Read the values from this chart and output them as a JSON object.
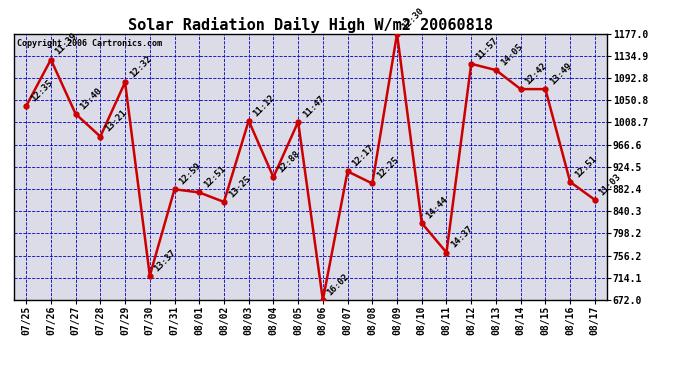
{
  "title": "Solar Radiation Daily High W/m2 20060818",
  "copyright": "Copyright 2006 Cartronics.com",
  "dates": [
    "07/25",
    "07/26",
    "07/27",
    "07/28",
    "07/29",
    "07/30",
    "07/31",
    "08/01",
    "08/02",
    "08/03",
    "08/04",
    "08/05",
    "08/06",
    "08/07",
    "08/08",
    "08/09",
    "08/10",
    "08/11",
    "08/12",
    "08/13",
    "08/14",
    "08/15",
    "08/16",
    "08/17"
  ],
  "values": [
    1040,
    1128,
    1025,
    982,
    1085,
    718,
    882,
    876,
    858,
    1012,
    905,
    1010,
    672,
    916,
    893,
    1177,
    818,
    762,
    1120,
    1108,
    1072,
    1072,
    896,
    862
  ],
  "annotations": [
    "12:35",
    "11:39",
    "13:40",
    "13:21",
    "12:32",
    "13:37",
    "12:59",
    "12:51",
    "13:25",
    "11:12",
    "12:88",
    "11:47",
    "16:02",
    "12:17",
    "12:25",
    "12:30",
    "14:44",
    "14:37",
    "11:57",
    "14:05",
    "12:42",
    "13:49",
    "12:51",
    "11:03"
  ],
  "ylim_min": 672.0,
  "ylim_max": 1177.0,
  "yticks": [
    672.0,
    714.1,
    756.2,
    798.2,
    840.3,
    882.4,
    924.5,
    966.6,
    1008.7,
    1050.8,
    1092.8,
    1134.9,
    1177.0
  ],
  "line_color": "#cc0000",
  "marker_color": "#cc0000",
  "grid_color": "#0000bb",
  "bg_color": "#dcdce8",
  "title_fontsize": 11,
  "annotation_fontsize": 6.5,
  "tick_fontsize": 7,
  "copyright_fontsize": 6
}
